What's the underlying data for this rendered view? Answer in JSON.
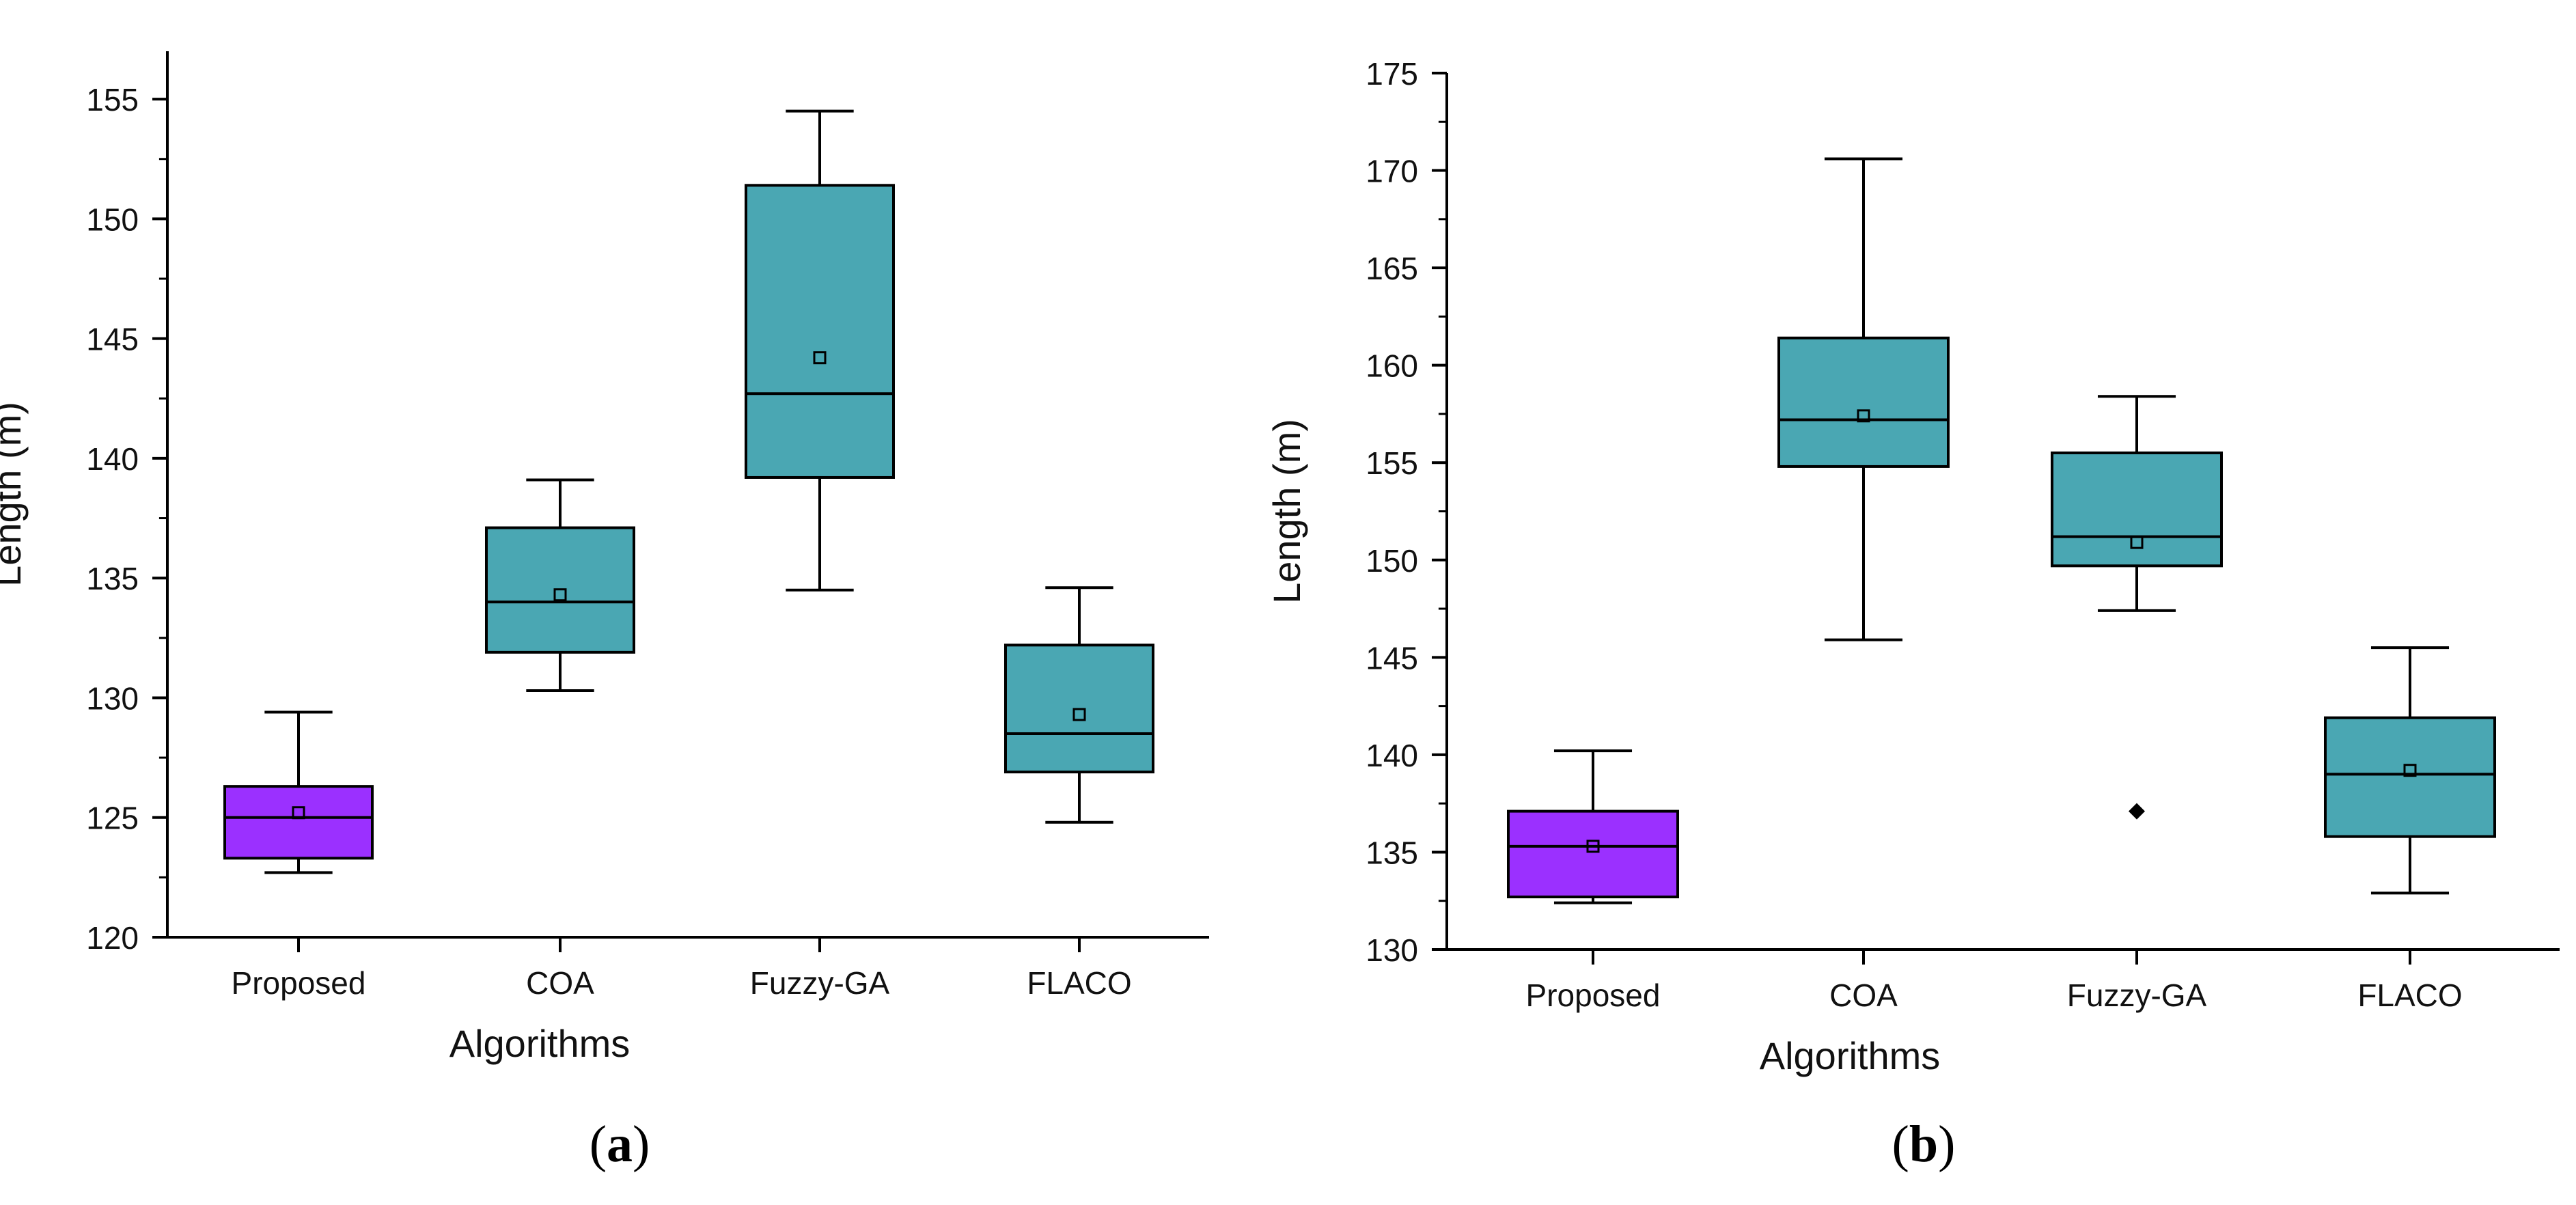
{
  "chart_data": [
    {
      "type": "box",
      "panel_label": "a",
      "title": "",
      "xlabel": "Algorithms",
      "ylabel": "Length (m)",
      "ylim": [
        120,
        157
      ],
      "yticks": [
        120,
        125,
        130,
        135,
        140,
        145,
        150,
        155
      ],
      "grid": false,
      "categories": [
        "Proposed",
        "COA",
        "Fuzzy-GA",
        "FLACO"
      ],
      "boxes": [
        {
          "name": "Proposed",
          "min": 122.7,
          "q1": 123.3,
          "median": 125.0,
          "q3": 126.3,
          "max": 129.4,
          "mean": 125.2,
          "outliers": [],
          "color": "#9b30ff"
        },
        {
          "name": "COA",
          "min": 130.3,
          "q1": 131.9,
          "median": 134.0,
          "q3": 137.1,
          "max": 139.1,
          "mean": 134.3,
          "outliers": [],
          "color": "#4aa7b3"
        },
        {
          "name": "Fuzzy-GA",
          "min": 134.5,
          "q1": 139.2,
          "median": 142.7,
          "q3": 151.4,
          "max": 154.5,
          "mean": 144.2,
          "outliers": [],
          "color": "#4aa7b3"
        },
        {
          "name": "FLACO",
          "min": 124.8,
          "q1": 126.9,
          "median": 128.5,
          "q3": 132.2,
          "max": 134.6,
          "mean": 129.3,
          "outliers": [],
          "color": "#4aa7b3"
        }
      ]
    },
    {
      "type": "box",
      "panel_label": "b",
      "title": "",
      "xlabel": "Algorithms",
      "ylabel": "Length (m)",
      "ylim": [
        130,
        175
      ],
      "yticks": [
        130,
        135,
        140,
        145,
        150,
        155,
        160,
        165,
        170,
        175
      ],
      "grid": false,
      "categories": [
        "Proposed",
        "COA",
        "Fuzzy-GA",
        "FLACO"
      ],
      "boxes": [
        {
          "name": "Proposed",
          "min": 132.4,
          "q1": 132.7,
          "median": 135.3,
          "q3": 137.1,
          "max": 140.2,
          "mean": 135.3,
          "outliers": [],
          "color": "#9b30ff"
        },
        {
          "name": "COA",
          "min": 145.9,
          "q1": 154.8,
          "median": 157.2,
          "q3": 161.4,
          "max": 170.6,
          "mean": 157.4,
          "outliers": [],
          "color": "#4aa7b3"
        },
        {
          "name": "Fuzzy-GA",
          "min": 147.4,
          "q1": 149.7,
          "median": 151.2,
          "q3": 155.5,
          "max": 158.4,
          "mean": 150.9,
          "outliers": [
            137.1
          ],
          "color": "#4aa7b3"
        },
        {
          "name": "FLACO",
          "min": 132.9,
          "q1": 135.8,
          "median": 139.0,
          "q3": 141.9,
          "max": 145.5,
          "mean": 139.2,
          "outliers": [],
          "color": "#4aa7b3"
        }
      ]
    }
  ]
}
